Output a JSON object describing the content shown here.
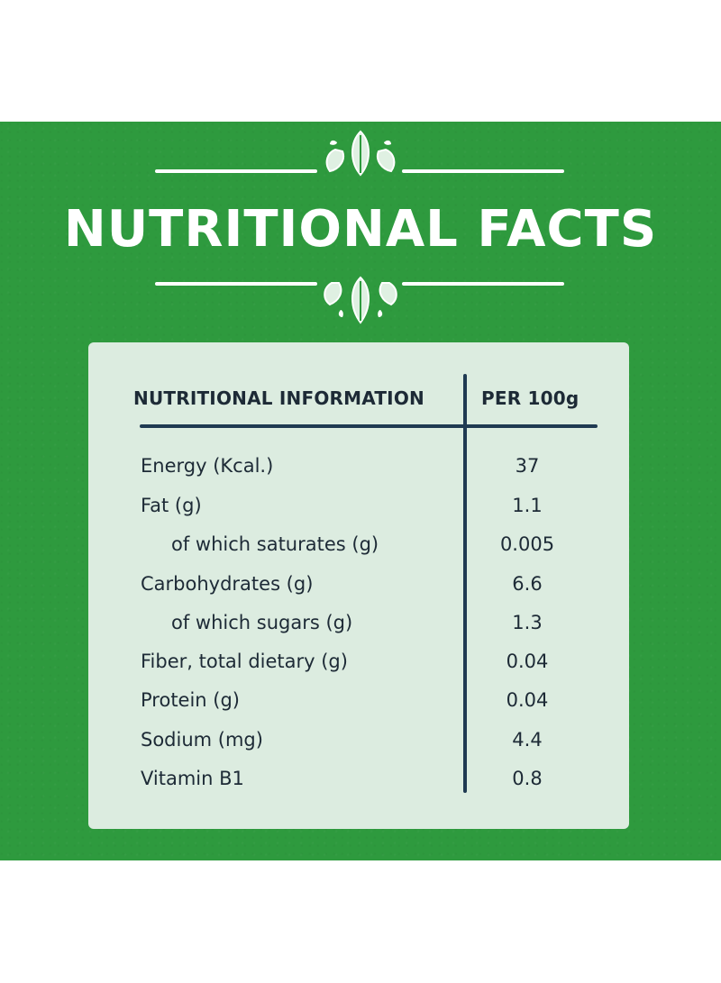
{
  "title": "NUTRITIONAL FACTS",
  "table": {
    "header_info": "NUTRITIONAL INFORMATION",
    "header_per": "PER 100g",
    "rows": [
      {
        "label": "Energy (Kcal.)",
        "value": "37"
      },
      {
        "label": "Fat (g)",
        "value": "1.1"
      },
      {
        "label": "of which saturates (g)",
        "value": "0.005"
      },
      {
        "label": "Carbohydrates (g)",
        "value": "6.6"
      },
      {
        "label": "of which sugars (g)",
        "value": "1.3"
      },
      {
        "label": "Fiber, total dietary (g)",
        "value": "0.04"
      },
      {
        "label": "Protein (g)",
        "value": "0.04"
      },
      {
        "label": "Sodium (mg)",
        "value": "4.4"
      },
      {
        "label": "Vitamin B1",
        "value": "0.8"
      }
    ]
  },
  "colors": {
    "background_green": "#2e9a3e",
    "card": "#dcece0",
    "text_dark": "#1d2a36",
    "divider": "#1f3a52"
  },
  "icons": [
    "leaf-ornament-icon"
  ]
}
